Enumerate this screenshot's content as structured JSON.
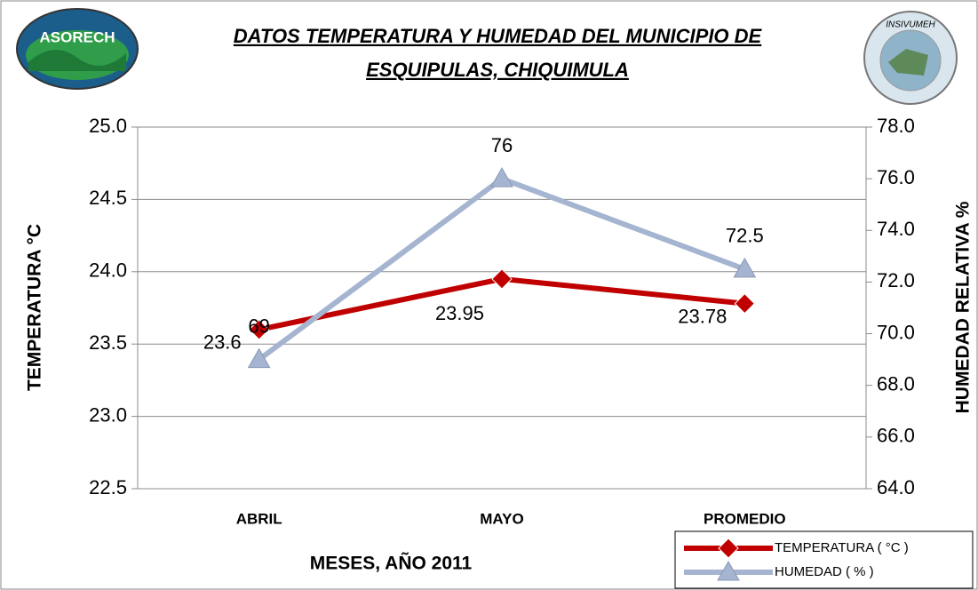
{
  "chart_data": {
    "type": "line",
    "title": [
      "DATOS TEMPERATURA  Y HUMEDAD  DEL MUNICIPIO DE",
      "ESQUIPULAS,  CHIQUIMULA"
    ],
    "logo_left": "ASORECH",
    "logo_right": "INSIVUMEH",
    "x_label": "MESES,  AÑO 2011",
    "y_label": "TEMPERATURA  °C",
    "y2_label": "HUMEDAD  RELATIVA  %",
    "categories": [
      "ABRIL",
      "MAYO",
      "PROMEDIO"
    ],
    "ylim": [
      22.5,
      25.0
    ],
    "yticks": [
      22.5,
      {
        "value": 23,
        "label": "23.0"
      },
      23.5,
      {
        "value": 24,
        "label": "24.0"
      },
      24.5,
      {
        "value": 25,
        "label": "25.0"
      }
    ],
    "y2lim": [
      64,
      78
    ],
    "y2ticks": [
      {
        "value": 64,
        "label": "64.0"
      },
      {
        "value": 66,
        "label": "66.0"
      },
      {
        "value": 68,
        "label": "68.0"
      },
      {
        "value": 70,
        "label": "70.0"
      },
      {
        "value": 72,
        "label": "72.0"
      },
      {
        "value": 74,
        "label": "74.0"
      },
      {
        "value": 76,
        "label": "76.0"
      },
      {
        "value": 78,
        "label": "78.0"
      }
    ],
    "grid": true,
    "legend": "bottom-right",
    "series": [
      {
        "name": "TEMPERATURA ( °C )",
        "color": "#c00000",
        "marker": "diamond",
        "values": [
          23.6,
          23.95,
          23.78
        ]
      },
      {
        "name": "HUMEDAD ( % )",
        "color": "#a5b4d0",
        "marker": "triangle",
        "axis": "y2",
        "values": [
          69,
          76,
          72.5
        ]
      }
    ]
  }
}
